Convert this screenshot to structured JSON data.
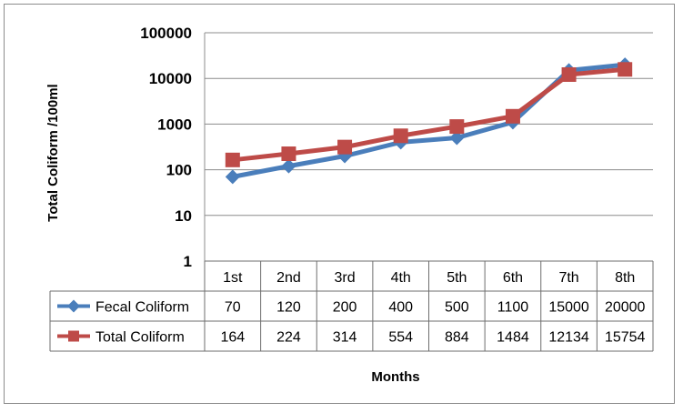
{
  "chart_data": {
    "type": "line",
    "title": "",
    "xlabel": "Months",
    "ylabel": "Total Coliform /100ml",
    "yscale": "log",
    "ylim": [
      1,
      100000
    ],
    "yticks": [
      "1",
      "10",
      "100",
      "1000",
      "10000",
      "100000"
    ],
    "categories": [
      "1st",
      "2nd",
      "3rd",
      "4th",
      "5th",
      "6th",
      "7th",
      "8th"
    ],
    "grid": true,
    "legend": "data-table",
    "series": [
      {
        "name": "Fecal Coliform",
        "values": [
          70,
          120,
          200,
          400,
          500,
          1100,
          15000,
          20000
        ],
        "labels": [
          "70",
          "120",
          "200",
          "400",
          "500",
          "1100",
          "15000",
          "20000"
        ],
        "color": "#4a7ebb",
        "marker": "diamond"
      },
      {
        "name": "Total Coliform",
        "values": [
          164,
          224,
          314,
          554,
          884,
          1484,
          12134,
          15754
        ],
        "labels": [
          "164",
          "224",
          "314",
          "554",
          "884",
          "1484",
          "12134",
          "15754"
        ],
        "color": "#be4b48",
        "marker": "square"
      }
    ]
  }
}
